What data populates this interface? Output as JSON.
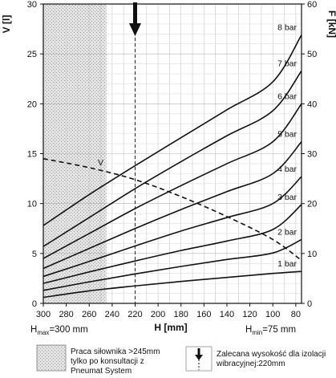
{
  "chart_data": {
    "type": "line",
    "x_axis": {
      "label": "H [mm]",
      "reversed": true,
      "range": [
        300,
        75
      ],
      "ticks": [
        300,
        280,
        260,
        240,
        220,
        200,
        180,
        160,
        140,
        120,
        100,
        80
      ]
    },
    "y_left": {
      "label": "V [l]",
      "range": [
        0,
        30
      ],
      "ticks": [
        0,
        5,
        10,
        15,
        20,
        25,
        30
      ]
    },
    "y_right": {
      "label": "F [kN]",
      "range": [
        0,
        60
      ],
      "ticks": [
        0,
        10,
        20,
        30,
        40,
        50,
        60
      ]
    },
    "grid": true,
    "h_max_label": {
      "main": "H",
      "sub": "max",
      "rest": "=300 mm"
    },
    "h_min_label": {
      "main": "H",
      "sub": "min",
      "rest": "=75 mm"
    },
    "series": [
      {
        "name": "1 bar",
        "axis": "right",
        "x": [
          300,
          260,
          220,
          180,
          140,
          100,
          75
        ],
        "values": [
          1.2,
          2.5,
          3.5,
          4.4,
          5.2,
          6.0,
          6.4
        ]
      },
      {
        "name": "2 bar",
        "axis": "right",
        "x": [
          300,
          260,
          220,
          180,
          140,
          100,
          75
        ],
        "values": [
          2.6,
          4.3,
          5.9,
          7.4,
          8.8,
          10.1,
          12.8
        ]
      },
      {
        "name": "3 bar",
        "axis": "right",
        "x": [
          300,
          260,
          220,
          180,
          140,
          100,
          75
        ],
        "values": [
          4.0,
          6.3,
          8.5,
          10.6,
          12.5,
          14.8,
          19.8
        ]
      },
      {
        "name": "4 bar",
        "axis": "right",
        "x": [
          300,
          260,
          220,
          180,
          140,
          100,
          75
        ],
        "values": [
          5.4,
          8.4,
          11.5,
          14.5,
          17.2,
          20.0,
          25.4
        ]
      },
      {
        "name": "5 bar",
        "axis": "right",
        "x": [
          300,
          260,
          220,
          180,
          140,
          100,
          75
        ],
        "values": [
          7.0,
          11.0,
          15.0,
          18.8,
          22.4,
          26.0,
          32.4
        ]
      },
      {
        "name": "6 bar",
        "axis": "right",
        "x": [
          300,
          260,
          220,
          180,
          140,
          100,
          75
        ],
        "values": [
          9.0,
          14.0,
          19.0,
          23.6,
          28.0,
          32.4,
          40.0
        ]
      },
      {
        "name": "7 bar",
        "axis": "right",
        "x": [
          300,
          260,
          220,
          180,
          140,
          100,
          75
        ],
        "values": [
          11.4,
          17.2,
          23.0,
          28.4,
          33.6,
          38.6,
          46.6
        ]
      },
      {
        "name": "8 bar",
        "axis": "right",
        "x": [
          300,
          260,
          220,
          180,
          140,
          100,
          75
        ],
        "values": [
          15.6,
          21.8,
          27.6,
          33.2,
          38.8,
          44.4,
          53.8
        ]
      }
    ],
    "volume_curve": {
      "name": "V",
      "axis": "left",
      "style": "dashed",
      "x": [
        300,
        260,
        220,
        180,
        140,
        100,
        75
      ],
      "values": [
        14.5,
        13.6,
        12.4,
        10.7,
        8.7,
        6.4,
        4.3
      ]
    },
    "annotations": {
      "hatched_region_x": [
        300,
        245
      ],
      "recommended_height": 220
    },
    "legend": [
      {
        "kind": "hatch",
        "lines": [
          "Praca siłownika >245mm",
          "tylko po konsultacji z",
          "Pneumat System"
        ]
      },
      {
        "kind": "arrow",
        "lines": [
          "Zalecana wysokość dla izolacji",
          "wibracyjnej:220mm"
        ]
      }
    ]
  }
}
